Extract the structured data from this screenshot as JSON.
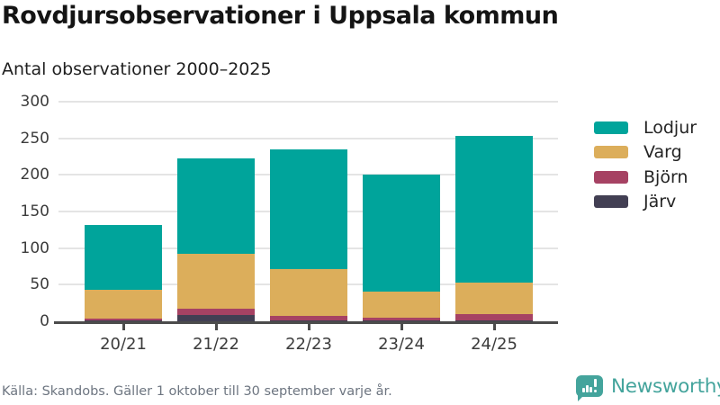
{
  "header": {
    "title": "Rovdjursobservationer i Uppsala kommun",
    "subtitle": "Antal observationer 2000–2025"
  },
  "chart_data": {
    "type": "bar",
    "stacked": true,
    "title": "Rovdjursobservationer i Uppsala kommun",
    "subtitle": "Antal observationer 2000–2025",
    "categories": [
      "20/21",
      "21/22",
      "22/23",
      "23/24",
      "24/25"
    ],
    "series": [
      {
        "name": "Lodjur",
        "color": "#00a49b",
        "values": [
          88,
          131,
          164,
          159,
          200
        ]
      },
      {
        "name": "Varg",
        "color": "#dcae5b",
        "values": [
          39,
          75,
          64,
          36,
          43
        ]
      },
      {
        "name": "Björn",
        "color": "#a64263",
        "values": [
          3,
          8,
          6,
          4,
          9
        ]
      },
      {
        "name": "Järv",
        "color": "#423f53",
        "values": [
          1,
          9,
          1,
          1,
          1
        ]
      }
    ],
    "totals": [
      131,
      223,
      235,
      200,
      253
    ],
    "stack_order_bottom_to_top": [
      "Järv",
      "Björn",
      "Varg",
      "Lodjur"
    ],
    "xlabel": "",
    "ylabel": "",
    "ylim": [
      0,
      300
    ],
    "yticks": [
      0,
      50,
      100,
      150,
      200,
      250,
      300
    ],
    "grid": true,
    "legend_position": "right",
    "colors": {
      "gridline": "#e4e4e4",
      "axis": "#4b4b4b",
      "tick_label": "#3c3c3c"
    }
  },
  "footer": {
    "source": "Källa: Skandobs. Gäller 1 oktober till 30 september varje år.",
    "brand": "Newsworthy",
    "brand_color": "#44a49c"
  }
}
